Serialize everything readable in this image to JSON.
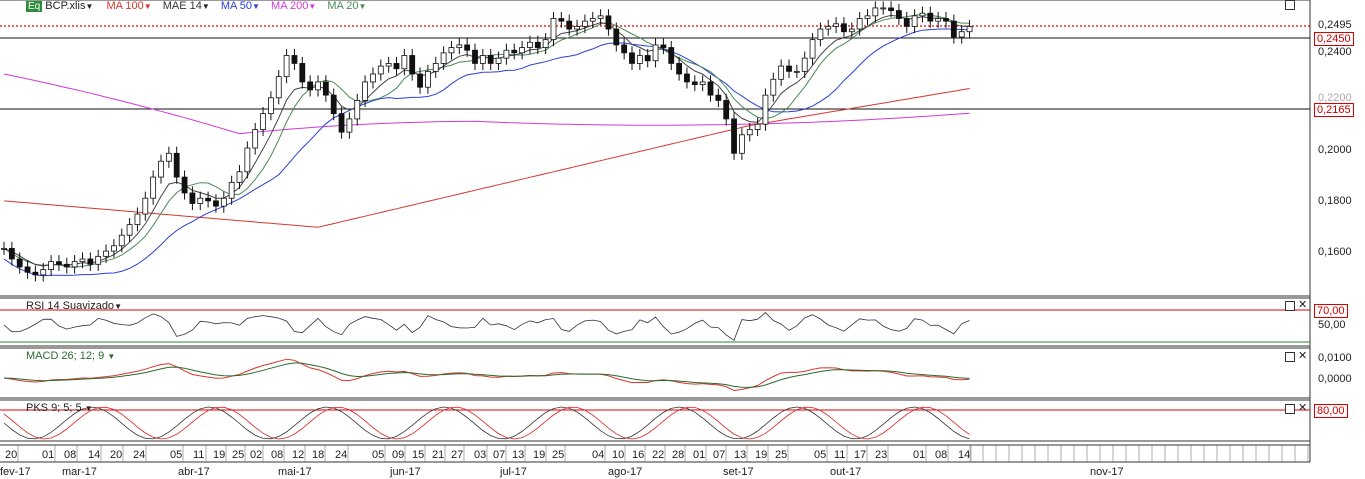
{
  "header": {
    "badge": "Eq",
    "symbol": "BCP.xlis",
    "mas": [
      {
        "label": "MA 100",
        "color": "#d9362b"
      },
      {
        "label": "MAE 14",
        "color": "#333333"
      },
      {
        "label": "MA 50",
        "color": "#2a3fd6"
      },
      {
        "label": "MA 200",
        "color": "#d23ad8"
      },
      {
        "label": "MA 20",
        "color": "#4a8a55"
      }
    ]
  },
  "price_axis": {
    "ticks": [
      "0,2495",
      "0,2400",
      "0,2200",
      "0,2000",
      "0,1800",
      "0,1600"
    ],
    "highlight_top": "0,2450",
    "highlight_low": "0,2165"
  },
  "rsi": {
    "label": "RSI 14 Suavizado",
    "level_high": "70,00",
    "mid": "50,00"
  },
  "macd": {
    "label": "MACD 26; 12; 9",
    "ticks": [
      "0,0100",
      "0,0000"
    ]
  },
  "pks": {
    "label": "PKS 9; 5; 5",
    "level_high": "80,00"
  },
  "x_axis": {
    "days": [
      "20",
      "01",
      "08",
      "14",
      "20",
      "24",
      "05",
      "11",
      "19",
      "25",
      "02",
      "08",
      "12",
      "18",
      "24",
      "05",
      "09",
      "15",
      "21",
      "27",
      "03",
      "07",
      "13",
      "19",
      "25",
      "04",
      "10",
      "16",
      "22",
      "28",
      "01",
      "07",
      "13",
      "19",
      "25",
      "05",
      "11",
      "17",
      "23",
      "01",
      "08",
      "14"
    ],
    "months": [
      "fev-17",
      "mar-17",
      "abr-17",
      "mai-17",
      "jun-17",
      "jul-17",
      "ago-17",
      "set-17",
      "out-17",
      "nov-17"
    ]
  },
  "chart_data": {
    "type": "candlestick",
    "symbol": "BCP.xlis",
    "y_range": [
      0.145,
      0.257
    ],
    "closes": [
      0.163,
      0.159,
      0.156,
      0.154,
      0.153,
      0.155,
      0.158,
      0.157,
      0.156,
      0.158,
      0.159,
      0.157,
      0.16,
      0.162,
      0.164,
      0.168,
      0.172,
      0.176,
      0.182,
      0.19,
      0.196,
      0.199,
      0.19,
      0.184,
      0.18,
      0.182,
      0.181,
      0.179,
      0.182,
      0.188,
      0.192,
      0.201,
      0.208,
      0.214,
      0.22,
      0.228,
      0.236,
      0.233,
      0.226,
      0.223,
      0.226,
      0.221,
      0.214,
      0.207,
      0.212,
      0.219,
      0.226,
      0.229,
      0.232,
      0.233,
      0.231,
      0.236,
      0.229,
      0.224,
      0.23,
      0.233,
      0.237,
      0.239,
      0.24,
      0.238,
      0.233,
      0.236,
      0.233,
      0.235,
      0.238,
      0.237,
      0.239,
      0.241,
      0.239,
      0.242,
      0.25,
      0.249,
      0.246,
      0.247,
      0.249,
      0.25,
      0.251,
      0.246,
      0.24,
      0.237,
      0.233,
      0.236,
      0.234,
      0.24,
      0.239,
      0.233,
      0.229,
      0.226,
      0.225,
      0.226,
      0.221,
      0.219,
      0.212,
      0.199,
      0.206,
      0.208,
      0.21,
      0.221,
      0.227,
      0.232,
      0.23,
      0.23,
      0.235,
      0.242,
      0.246,
      0.247,
      0.248,
      0.245,
      0.246,
      0.25,
      0.251,
      0.254,
      0.254,
      0.253,
      0.25,
      0.247,
      0.251,
      0.252,
      0.249,
      0.25,
      0.249,
      0.243,
      0.245,
      0.247
    ]
  }
}
